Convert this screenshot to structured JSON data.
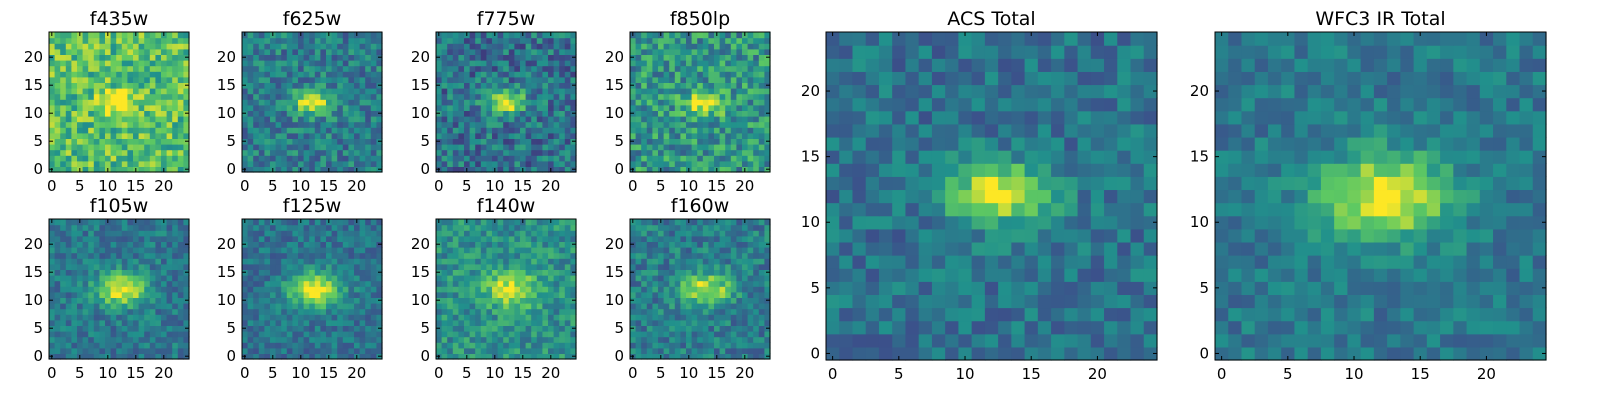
{
  "figure": {
    "colormap": "viridis",
    "colors": {
      "low": "#440154",
      "mid": "#21918c",
      "high": "#fde725",
      "frame": "#000000",
      "background": "#ffffff"
    }
  },
  "chart_data": [
    {
      "type": "heatmap",
      "title": "f435w",
      "grid_size": 25,
      "xlim": [
        0,
        24
      ],
      "ylim": [
        0,
        24
      ],
      "x_ticks": [
        0,
        5,
        10,
        15,
        20
      ],
      "y_ticks": [
        0,
        5,
        10,
        15,
        20
      ],
      "source": {
        "x": 12,
        "y": 12,
        "sigma_x": 2.2,
        "sigma_y": 1.4,
        "peak": 0.45
      },
      "background_level": 0.7,
      "noise": 0.22,
      "seed": 11
    },
    {
      "type": "heatmap",
      "title": "f625w",
      "grid_size": 25,
      "xlim": [
        0,
        24
      ],
      "ylim": [
        0,
        24
      ],
      "x_ticks": [
        0,
        5,
        10,
        15,
        20
      ],
      "y_ticks": [
        0,
        5,
        10,
        15,
        20
      ],
      "source": {
        "x": 12,
        "y": 12,
        "sigma_x": 2.4,
        "sigma_y": 1.5,
        "peak": 0.6
      },
      "background_level": 0.42,
      "noise": 0.18,
      "seed": 23
    },
    {
      "type": "heatmap",
      "title": "f775w",
      "grid_size": 25,
      "xlim": [
        0,
        24
      ],
      "ylim": [
        0,
        24
      ],
      "x_ticks": [
        0,
        5,
        10,
        15,
        20
      ],
      "y_ticks": [
        0,
        5,
        10,
        15,
        20
      ],
      "source": {
        "x": 12,
        "y": 12,
        "sigma_x": 2.4,
        "sigma_y": 1.5,
        "peak": 0.6
      },
      "background_level": 0.38,
      "noise": 0.2,
      "seed": 37
    },
    {
      "type": "heatmap",
      "title": "f850lp",
      "grid_size": 25,
      "xlim": [
        0,
        24
      ],
      "ylim": [
        0,
        24
      ],
      "x_ticks": [
        0,
        5,
        10,
        15,
        20
      ],
      "y_ticks": [
        0,
        5,
        10,
        15,
        20
      ],
      "source": {
        "x": 13,
        "y": 12,
        "sigma_x": 2.6,
        "sigma_y": 1.5,
        "peak": 0.45
      },
      "background_level": 0.52,
      "noise": 0.22,
      "seed": 41
    },
    {
      "type": "heatmap",
      "title": "f105w",
      "grid_size": 25,
      "xlim": [
        0,
        24
      ],
      "ylim": [
        0,
        24
      ],
      "x_ticks": [
        0,
        5,
        10,
        15,
        20
      ],
      "y_ticks": [
        0,
        5,
        10,
        15,
        20
      ],
      "source": {
        "x": 12.5,
        "y": 12,
        "sigma_x": 3.2,
        "sigma_y": 2.0,
        "peak": 0.6
      },
      "background_level": 0.4,
      "noise": 0.14,
      "seed": 53
    },
    {
      "type": "heatmap",
      "title": "f125w",
      "grid_size": 25,
      "xlim": [
        0,
        24
      ],
      "ylim": [
        0,
        24
      ],
      "x_ticks": [
        0,
        5,
        10,
        15,
        20
      ],
      "y_ticks": [
        0,
        5,
        10,
        15,
        20
      ],
      "source": {
        "x": 12.5,
        "y": 12,
        "sigma_x": 3.3,
        "sigma_y": 2.2,
        "peak": 0.62
      },
      "background_level": 0.38,
      "noise": 0.13,
      "seed": 67
    },
    {
      "type": "heatmap",
      "title": "f140w",
      "grid_size": 25,
      "xlim": [
        0,
        24
      ],
      "ylim": [
        0,
        24
      ],
      "x_ticks": [
        0,
        5,
        10,
        15,
        20
      ],
      "y_ticks": [
        0,
        5,
        10,
        15,
        20
      ],
      "source": {
        "x": 13,
        "y": 12,
        "sigma_x": 3.4,
        "sigma_y": 2.2,
        "peak": 0.45
      },
      "background_level": 0.5,
      "noise": 0.16,
      "seed": 71
    },
    {
      "type": "heatmap",
      "title": "f160w",
      "grid_size": 25,
      "xlim": [
        0,
        24
      ],
      "ylim": [
        0,
        24
      ],
      "x_ticks": [
        0,
        5,
        10,
        15,
        20
      ],
      "y_ticks": [
        0,
        5,
        10,
        15,
        20
      ],
      "source": {
        "x": 13,
        "y": 12,
        "sigma_x": 3.3,
        "sigma_y": 2.0,
        "peak": 0.52
      },
      "background_level": 0.42,
      "noise": 0.16,
      "seed": 83
    },
    {
      "type": "heatmap",
      "title": "ACS Total",
      "grid_size": 25,
      "xlim": [
        0,
        24
      ],
      "ylim": [
        0,
        24
      ],
      "x_ticks": [
        0,
        5,
        10,
        15,
        20
      ],
      "y_ticks": [
        0,
        5,
        10,
        15,
        20
      ],
      "source": {
        "x": 12.5,
        "y": 12.2,
        "sigma_x": 2.6,
        "sigma_y": 1.6,
        "peak": 0.62
      },
      "background_level": 0.38,
      "noise": 0.14,
      "seed": 97
    },
    {
      "type": "heatmap",
      "title": "WFC3 IR Total",
      "grid_size": 25,
      "xlim": [
        0,
        24
      ],
      "ylim": [
        0,
        24
      ],
      "x_ticks": [
        0,
        5,
        10,
        15,
        20
      ],
      "y_ticks": [
        0,
        5,
        10,
        15,
        20
      ],
      "source": {
        "x": 12.5,
        "y": 12,
        "sigma_x": 3.4,
        "sigma_y": 2.2,
        "peak": 0.62
      },
      "background_level": 0.4,
      "noise": 0.12,
      "seed": 101
    }
  ]
}
